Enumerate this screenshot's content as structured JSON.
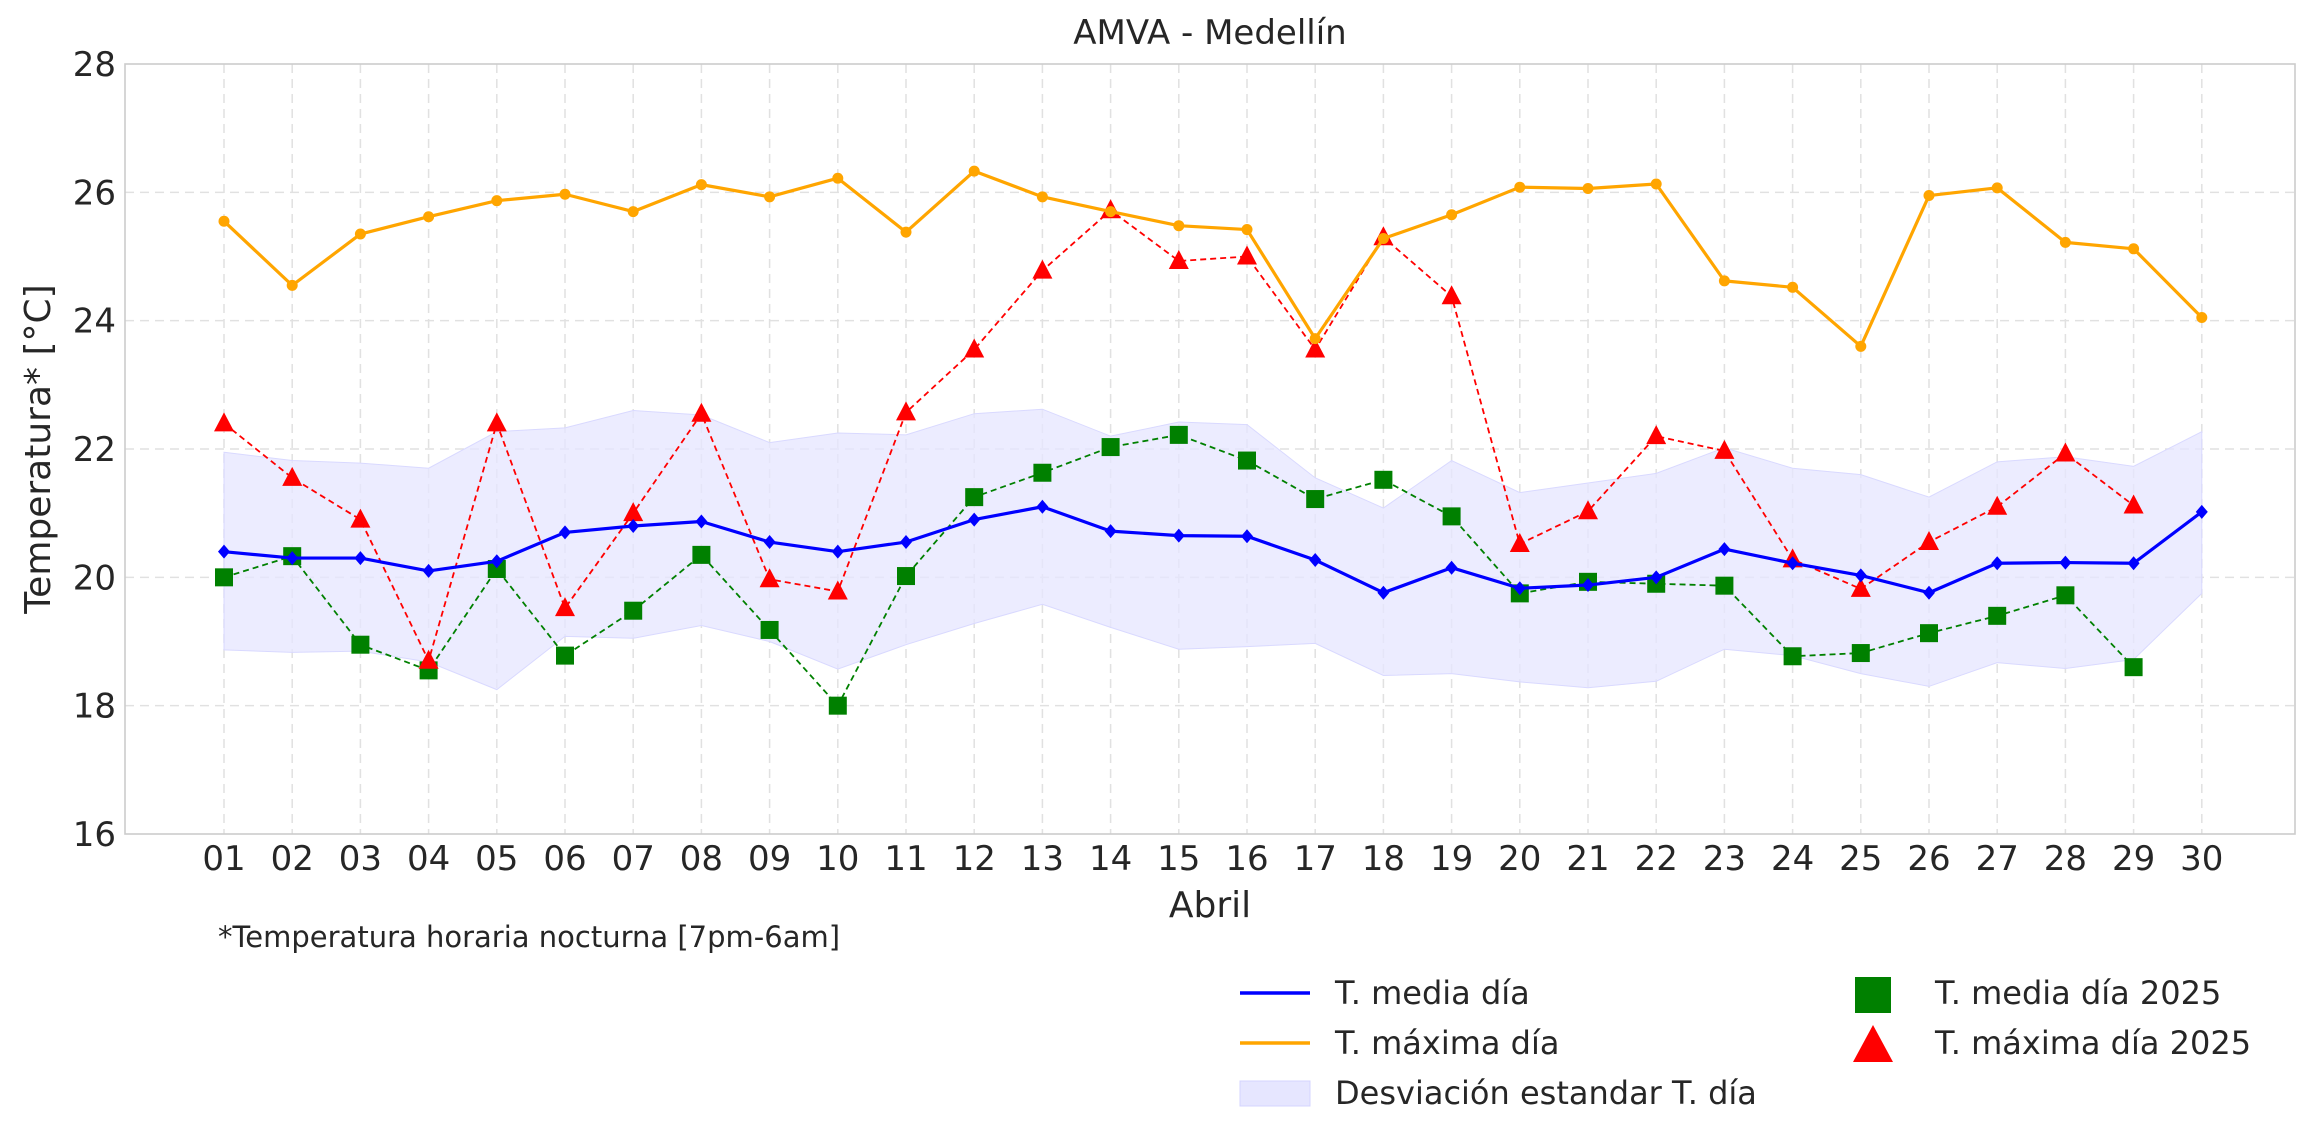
{
  "chart_data": {
    "type": "line",
    "title": "AMVA - Medellín",
    "xlabel": "Abril",
    "ylabel": "Temperatura* [°C]",
    "footnote": "*Temperatura horaria nocturna [7pm-6am]",
    "ylim": [
      16,
      28
    ],
    "yticks": [
      "16",
      "18",
      "20",
      "22",
      "24",
      "26",
      "28"
    ],
    "grid": true,
    "legend_position": "bottom-right, below plot",
    "x": [
      "01",
      "02",
      "03",
      "04",
      "05",
      "06",
      "07",
      "08",
      "09",
      "10",
      "11",
      "12",
      "13",
      "14",
      "15",
      "16",
      "17",
      "18",
      "19",
      "20",
      "21",
      "22",
      "23",
      "24",
      "25",
      "26",
      "27",
      "28",
      "29",
      "30"
    ],
    "series": [
      {
        "name": "T. media día",
        "color": "#0000ff",
        "style": "line",
        "marker": "diamond",
        "values": [
          20.4,
          20.3,
          20.3,
          20.1,
          20.25,
          20.7,
          20.8,
          20.87,
          20.55,
          20.4,
          20.55,
          20.9,
          21.1,
          20.72,
          20.65,
          20.64,
          20.27,
          19.76,
          20.15,
          19.83,
          19.88,
          20.0,
          20.44,
          20.22,
          20.03,
          19.76,
          20.22,
          20.23,
          20.22,
          21.02
        ]
      },
      {
        "name": "T. máxima día",
        "color": "#ffa500",
        "style": "line",
        "marker": "circle",
        "values": [
          25.55,
          24.55,
          25.35,
          25.62,
          25.87,
          25.97,
          25.7,
          26.12,
          25.93,
          26.22,
          25.38,
          26.33,
          25.93,
          25.7,
          25.48,
          25.42,
          23.72,
          25.28,
          25.65,
          26.08,
          26.06,
          26.13,
          24.62,
          24.52,
          23.6,
          25.95,
          26.07,
          25.22,
          25.12,
          24.05
        ]
      },
      {
        "name": "Desviación estandar T. día",
        "color": "#e6e6ff",
        "style": "band",
        "upper": [
          21.95,
          21.82,
          21.78,
          21.7,
          22.27,
          22.33,
          22.6,
          22.53,
          22.1,
          22.25,
          22.22,
          22.55,
          22.62,
          22.2,
          22.42,
          22.38,
          21.55,
          21.08,
          21.82,
          21.32,
          21.47,
          21.62,
          22.02,
          21.7,
          21.6,
          21.25,
          21.8,
          21.88,
          21.73,
          22.27
        ],
        "lower": [
          18.87,
          18.83,
          18.85,
          18.68,
          18.25,
          19.08,
          19.05,
          19.25,
          19.0,
          18.57,
          18.95,
          19.28,
          19.58,
          19.22,
          18.88,
          18.92,
          18.97,
          18.47,
          18.5,
          18.37,
          18.28,
          18.38,
          18.88,
          18.78,
          18.5,
          18.3,
          18.67,
          18.58,
          18.72,
          19.75
        ]
      },
      {
        "name": "T. media día 2025",
        "color": "#008000",
        "style": "dashed",
        "marker": "square",
        "values": [
          20.0,
          20.33,
          18.95,
          18.55,
          20.13,
          18.78,
          19.48,
          20.35,
          19.18,
          18.0,
          20.02,
          21.25,
          21.63,
          22.03,
          22.22,
          21.82,
          21.22,
          21.52,
          20.95,
          19.75,
          19.93,
          19.9,
          19.87,
          18.77,
          18.82,
          19.13,
          19.4,
          19.72,
          18.6,
          null
        ]
      },
      {
        "name": "T. máxima día 2025",
        "color": "#ff0000",
        "style": "dashed",
        "marker": "triangle",
        "values": [
          22.4,
          21.55,
          20.9,
          18.7,
          22.4,
          19.52,
          21.0,
          22.55,
          19.97,
          19.78,
          22.57,
          23.55,
          24.78,
          25.72,
          24.93,
          25.0,
          23.55,
          25.3,
          24.38,
          20.52,
          21.03,
          22.2,
          21.97,
          20.28,
          19.82,
          20.55,
          21.1,
          21.93,
          21.12,
          null
        ]
      }
    ]
  }
}
